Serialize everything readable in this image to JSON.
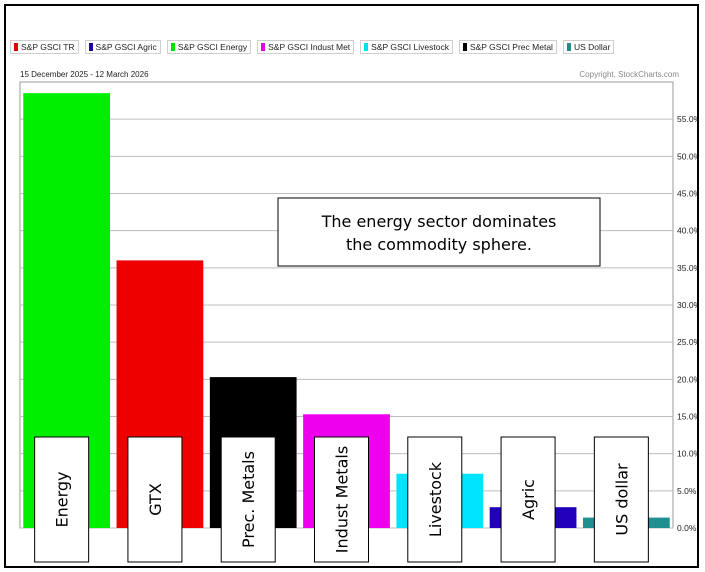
{
  "legend": [
    {
      "label": "S&P GSCI TR",
      "color": "#e00000"
    },
    {
      "label": "S&P GSCI Agric",
      "color": "#2000b0"
    },
    {
      "label": "S&P GSCI Energy",
      "color": "#00e000"
    },
    {
      "label": "S&P GSCI Indust Met",
      "color": "#e000e0"
    },
    {
      "label": "S&P GSCI Livestock",
      "color": "#00e0f0"
    },
    {
      "label": "S&P GSCI Prec Metal",
      "color": "#000000"
    },
    {
      "label": "US Dollar",
      "color": "#208c8c"
    }
  ],
  "date_range": "15 December 2025 - 12 March 2026",
  "copyright": "Copyright, StockCharts.com",
  "annotation": "The energy sector dominates the commodity sphere.",
  "chart_data": {
    "type": "bar",
    "categories": [
      "Energy",
      "GTX",
      "Prec. Metals",
      "Indust Metals",
      "Livestock",
      "Agric",
      "US dollar"
    ],
    "values": [
      58.5,
      36.0,
      20.3,
      15.3,
      7.3,
      2.8,
      1.4
    ],
    "colors": [
      "#00ee00",
      "#ee0000",
      "#000000",
      "#ee00ee",
      "#00e5ff",
      "#2200bb",
      "#1f8f8f"
    ],
    "yticks": [
      "0.0%",
      "5.0%",
      "10.0%",
      "15.0%",
      "20.0%",
      "25.0%",
      "30.0%",
      "35.0%",
      "40.0%",
      "45.0%",
      "50.0%",
      "55.0%"
    ],
    "ylim": [
      0,
      60
    ],
    "grid": true
  }
}
